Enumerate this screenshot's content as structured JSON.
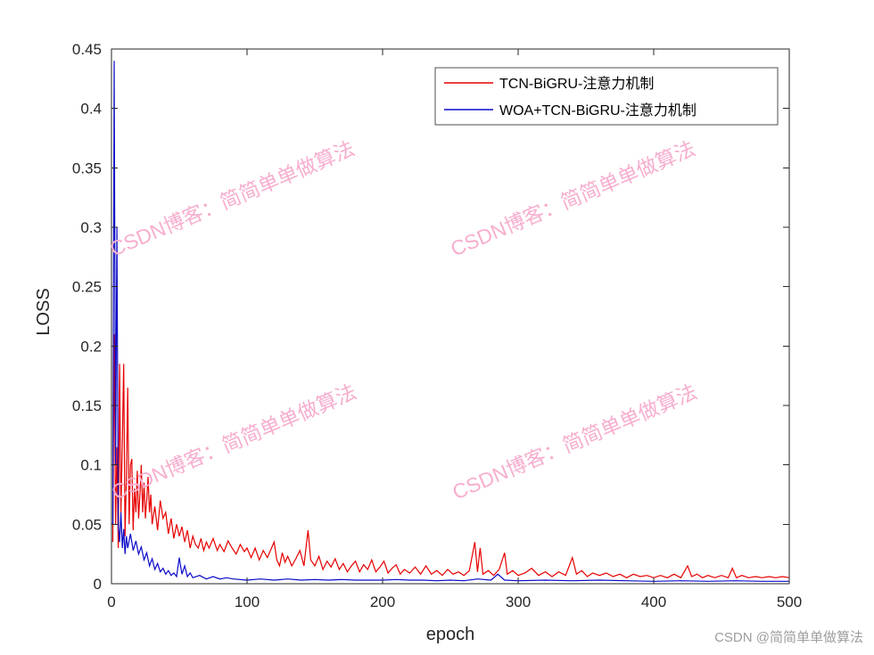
{
  "watermark": {
    "text": "CSDN博客：简简单单做算法",
    "color": "#f7aecf"
  },
  "credit": {
    "text": "CSDN @简简单单做算法"
  },
  "chart_data": {
    "type": "line",
    "title": "",
    "xlabel": "epoch",
    "ylabel": "LOSS",
    "xlim": [
      0,
      500
    ],
    "ylim": [
      0,
      0.45
    ],
    "xticks": [
      0,
      100,
      200,
      300,
      400,
      500
    ],
    "yticks": [
      0,
      0.05,
      0.1,
      0.15,
      0.2,
      0.25,
      0.3,
      0.35,
      0.4,
      0.45
    ],
    "grid": false,
    "legend_position": "top-right",
    "series": [
      {
        "name": "TCN-BiGRU-注意力机制",
        "color": "#e60000",
        "points": [
          [
            1,
            0.035
          ],
          [
            2,
            0.21
          ],
          [
            3,
            0.05
          ],
          [
            4,
            0.115
          ],
          [
            5,
            0.03
          ],
          [
            6,
            0.185
          ],
          [
            7,
            0.06
          ],
          [
            8,
            0.12
          ],
          [
            9,
            0.185
          ],
          [
            10,
            0.04
          ],
          [
            11,
            0.09
          ],
          [
            12,
            0.165
          ],
          [
            13,
            0.05
          ],
          [
            14,
            0.1
          ],
          [
            15,
            0.105
          ],
          [
            16,
            0.045
          ],
          [
            17,
            0.08
          ],
          [
            18,
            0.06
          ],
          [
            19,
            0.095
          ],
          [
            20,
            0.055
          ],
          [
            21,
            0.075
          ],
          [
            22,
            0.1
          ],
          [
            23,
            0.06
          ],
          [
            24,
            0.085
          ],
          [
            25,
            0.055
          ],
          [
            26,
            0.07
          ],
          [
            27,
            0.09
          ],
          [
            28,
            0.06
          ],
          [
            29,
            0.075
          ],
          [
            30,
            0.05
          ],
          [
            32,
            0.065
          ],
          [
            34,
            0.045
          ],
          [
            36,
            0.07
          ],
          [
            38,
            0.055
          ],
          [
            40,
            0.06
          ],
          [
            42,
            0.042
          ],
          [
            44,
            0.055
          ],
          [
            46,
            0.038
          ],
          [
            48,
            0.05
          ],
          [
            50,
            0.04
          ],
          [
            52,
            0.048
          ],
          [
            54,
            0.035
          ],
          [
            56,
            0.045
          ],
          [
            58,
            0.03
          ],
          [
            60,
            0.04
          ],
          [
            62,
            0.033
          ],
          [
            64,
            0.03
          ],
          [
            66,
            0.038
          ],
          [
            68,
            0.028
          ],
          [
            70,
            0.035
          ],
          [
            72,
            0.03
          ],
          [
            75,
            0.038
          ],
          [
            78,
            0.028
          ],
          [
            80,
            0.033
          ],
          [
            83,
            0.027
          ],
          [
            86,
            0.036
          ],
          [
            89,
            0.03
          ],
          [
            92,
            0.025
          ],
          [
            95,
            0.033
          ],
          [
            98,
            0.027
          ],
          [
            100,
            0.03
          ],
          [
            103,
            0.022
          ],
          [
            106,
            0.03
          ],
          [
            109,
            0.02
          ],
          [
            112,
            0.028
          ],
          [
            115,
            0.022
          ],
          [
            118,
            0.03
          ],
          [
            120,
            0.035
          ],
          [
            122,
            0.02
          ],
          [
            124,
            0.015
          ],
          [
            126,
            0.026
          ],
          [
            128,
            0.018
          ],
          [
            130,
            0.023
          ],
          [
            133,
            0.015
          ],
          [
            136,
            0.021
          ],
          [
            139,
            0.028
          ],
          [
            142,
            0.015
          ],
          [
            145,
            0.045
          ],
          [
            147,
            0.02
          ],
          [
            150,
            0.015
          ],
          [
            153,
            0.023
          ],
          [
            156,
            0.012
          ],
          [
            159,
            0.019
          ],
          [
            162,
            0.014
          ],
          [
            165,
            0.021
          ],
          [
            168,
            0.012
          ],
          [
            171,
            0.017
          ],
          [
            174,
            0.01
          ],
          [
            177,
            0.015
          ],
          [
            180,
            0.019
          ],
          [
            183,
            0.01
          ],
          [
            186,
            0.016
          ],
          [
            189,
            0.012
          ],
          [
            192,
            0.02
          ],
          [
            195,
            0.01
          ],
          [
            198,
            0.014
          ],
          [
            201,
            0.019
          ],
          [
            204,
            0.009
          ],
          [
            207,
            0.013
          ],
          [
            210,
            0.016
          ],
          [
            213,
            0.008
          ],
          [
            216,
            0.012
          ],
          [
            220,
            0.009
          ],
          [
            224,
            0.014
          ],
          [
            228,
            0.008
          ],
          [
            232,
            0.015
          ],
          [
            236,
            0.008
          ],
          [
            240,
            0.011
          ],
          [
            244,
            0.007
          ],
          [
            248,
            0.012
          ],
          [
            252,
            0.008
          ],
          [
            256,
            0.01
          ],
          [
            260,
            0.007
          ],
          [
            264,
            0.011
          ],
          [
            268,
            0.035
          ],
          [
            270,
            0.01
          ],
          [
            272,
            0.03
          ],
          [
            274,
            0.008
          ],
          [
            278,
            0.011
          ],
          [
            282,
            0.007
          ],
          [
            286,
            0.012
          ],
          [
            290,
            0.026
          ],
          [
            292,
            0.008
          ],
          [
            296,
            0.011
          ],
          [
            300,
            0.007
          ],
          [
            305,
            0.009
          ],
          [
            310,
            0.013
          ],
          [
            315,
            0.007
          ],
          [
            320,
            0.01
          ],
          [
            325,
            0.006
          ],
          [
            330,
            0.01
          ],
          [
            335,
            0.007
          ],
          [
            340,
            0.022
          ],
          [
            343,
            0.008
          ],
          [
            347,
            0.011
          ],
          [
            351,
            0.006
          ],
          [
            355,
            0.009
          ],
          [
            360,
            0.007
          ],
          [
            365,
            0.009
          ],
          [
            370,
            0.006
          ],
          [
            375,
            0.008
          ],
          [
            380,
            0.005
          ],
          [
            385,
            0.008
          ],
          [
            390,
            0.006
          ],
          [
            395,
            0.007
          ],
          [
            400,
            0.005
          ],
          [
            405,
            0.007
          ],
          [
            410,
            0.005
          ],
          [
            415,
            0.008
          ],
          [
            420,
            0.005
          ],
          [
            425,
            0.015
          ],
          [
            428,
            0.006
          ],
          [
            432,
            0.008
          ],
          [
            436,
            0.005
          ],
          [
            440,
            0.007
          ],
          [
            445,
            0.005
          ],
          [
            450,
            0.007
          ],
          [
            455,
            0.005
          ],
          [
            458,
            0.013
          ],
          [
            461,
            0.005
          ],
          [
            465,
            0.007
          ],
          [
            470,
            0.005
          ],
          [
            475,
            0.006
          ],
          [
            480,
            0.005
          ],
          [
            485,
            0.006
          ],
          [
            490,
            0.005
          ],
          [
            495,
            0.006
          ],
          [
            500,
            0.005
          ]
        ]
      },
      {
        "name": "WOA+TCN-BiGRU-注意力机制",
        "color": "#0a0ac8",
        "points": [
          [
            1,
            0.05
          ],
          [
            2,
            0.44
          ],
          [
            3,
            0.1
          ],
          [
            4,
            0.3
          ],
          [
            5,
            0.05
          ],
          [
            6,
            0.035
          ],
          [
            7,
            0.06
          ],
          [
            8,
            0.03
          ],
          [
            9,
            0.046
          ],
          [
            10,
            0.025
          ],
          [
            11,
            0.04
          ],
          [
            12,
            0.03
          ],
          [
            14,
            0.042
          ],
          [
            16,
            0.028
          ],
          [
            18,
            0.036
          ],
          [
            20,
            0.025
          ],
          [
            22,
            0.031
          ],
          [
            24,
            0.02
          ],
          [
            26,
            0.026
          ],
          [
            28,
            0.015
          ],
          [
            30,
            0.021
          ],
          [
            32,
            0.012
          ],
          [
            34,
            0.017
          ],
          [
            36,
            0.01
          ],
          [
            38,
            0.013
          ],
          [
            40,
            0.008
          ],
          [
            42,
            0.011
          ],
          [
            44,
            0.007
          ],
          [
            46,
            0.009
          ],
          [
            48,
            0.006
          ],
          [
            50,
            0.022
          ],
          [
            52,
            0.008
          ],
          [
            54,
            0.015
          ],
          [
            56,
            0.006
          ],
          [
            58,
            0.009
          ],
          [
            60,
            0.005
          ],
          [
            65,
            0.007
          ],
          [
            70,
            0.004
          ],
          [
            75,
            0.006
          ],
          [
            80,
            0.004
          ],
          [
            85,
            0.005
          ],
          [
            90,
            0.004
          ],
          [
            100,
            0.003
          ],
          [
            110,
            0.004
          ],
          [
            120,
            0.003
          ],
          [
            130,
            0.004
          ],
          [
            140,
            0.003
          ],
          [
            150,
            0.0035
          ],
          [
            160,
            0.003
          ],
          [
            170,
            0.0035
          ],
          [
            180,
            0.003
          ],
          [
            190,
            0.003
          ],
          [
            200,
            0.003
          ],
          [
            210,
            0.0035
          ],
          [
            220,
            0.003
          ],
          [
            230,
            0.003
          ],
          [
            240,
            0.0025
          ],
          [
            250,
            0.003
          ],
          [
            260,
            0.0025
          ],
          [
            270,
            0.004
          ],
          [
            280,
            0.003
          ],
          [
            285,
            0.008
          ],
          [
            290,
            0.003
          ],
          [
            300,
            0.0025
          ],
          [
            320,
            0.003
          ],
          [
            340,
            0.0025
          ],
          [
            360,
            0.003
          ],
          [
            380,
            0.0025
          ],
          [
            400,
            0.002
          ],
          [
            420,
            0.0025
          ],
          [
            440,
            0.002
          ],
          [
            460,
            0.0025
          ],
          [
            480,
            0.002
          ],
          [
            500,
            0.002
          ]
        ]
      }
    ]
  }
}
